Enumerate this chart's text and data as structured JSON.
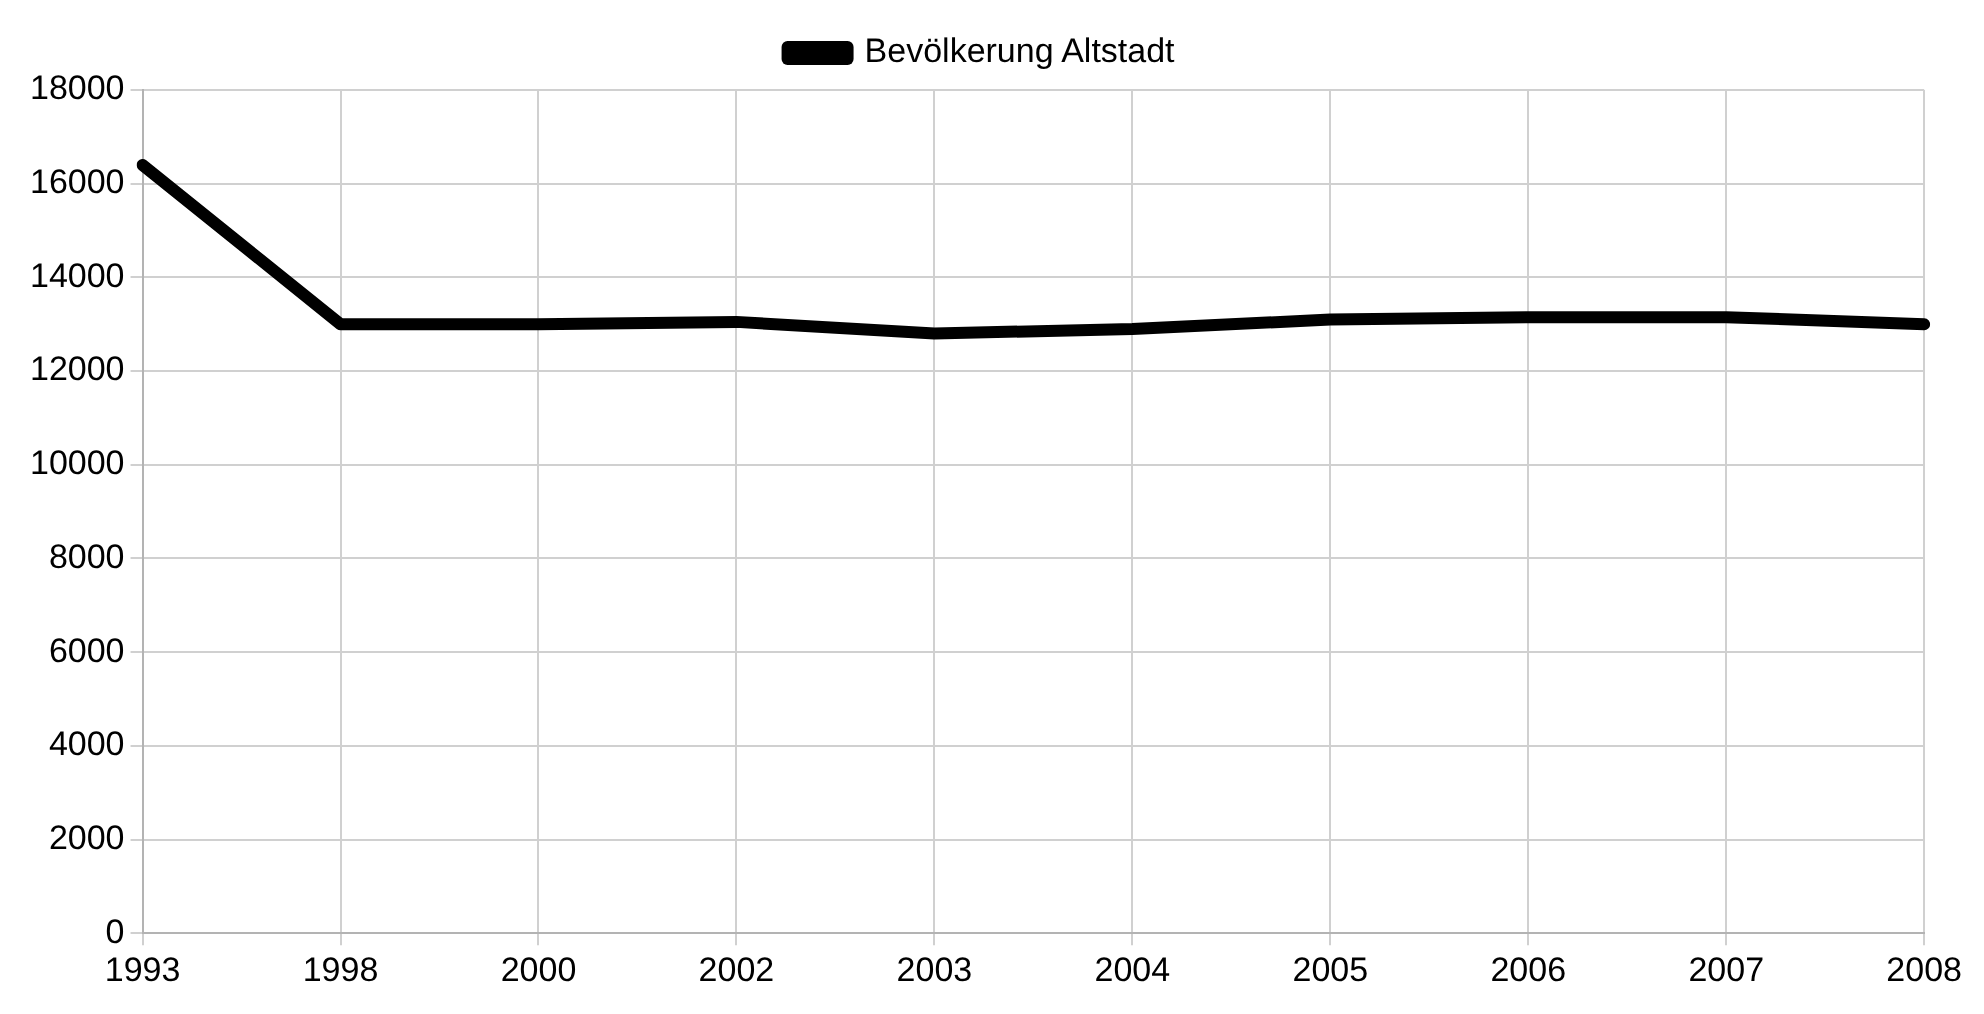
{
  "chart_data": {
    "type": "line",
    "categories": [
      "1993",
      "1998",
      "2000",
      "2002",
      "2003",
      "2004",
      "2005",
      "2006",
      "2007",
      "2008"
    ],
    "series": [
      {
        "name": "Bevölkerung Altstadt",
        "color": "#000000",
        "values": [
          16400,
          13000,
          13000,
          13050,
          12800,
          12900,
          13100,
          13150,
          13150,
          13000
        ]
      }
    ],
    "ylim": [
      0,
      18000
    ],
    "yticks": [
      0,
      2000,
      4000,
      6000,
      8000,
      10000,
      12000,
      14000,
      16000,
      18000
    ],
    "grid": true,
    "legend": "top",
    "marker": "none",
    "line_style": "solid"
  }
}
